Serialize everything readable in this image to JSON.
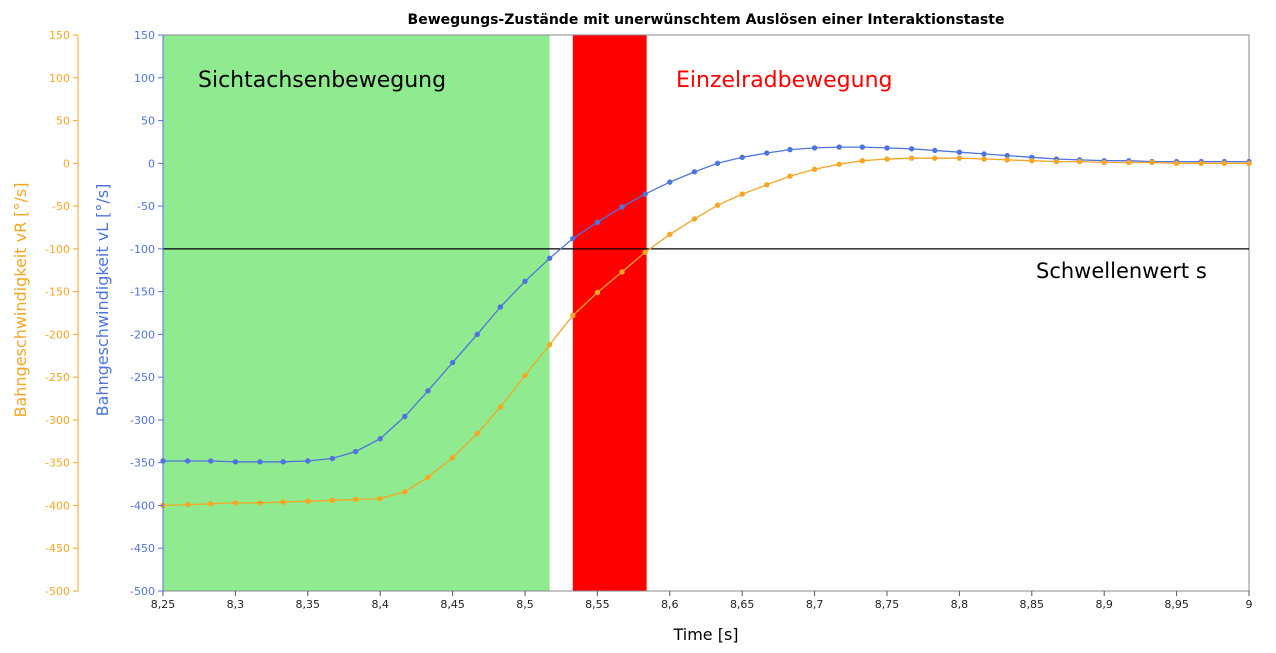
{
  "chart_data": {
    "type": "line",
    "title": "Bewegungs-Zustände mit unerwünschtem Auslösen einer Interaktionstaste",
    "xlabel": "Time [s]",
    "ylabel_left": "Bahngeschwindigkeit vL [°/s]",
    "ylabel_right": "Bahngeschwindigkeit vR [°/s]",
    "xlim": [
      8.25,
      9.0
    ],
    "ylim": [
      -500,
      150
    ],
    "x_ticks": [
      "8,25",
      "8,3",
      "8,35",
      "8,4",
      "8,45",
      "8,5",
      "8,55",
      "8,6",
      "8,65",
      "8,7",
      "8,75",
      "8,8",
      "8,85",
      "8,9",
      "8,95",
      "9"
    ],
    "y_ticks": [
      "150",
      "100",
      "50",
      "0",
      "-50",
      "-100",
      "-150",
      "-200",
      "-250",
      "-300",
      "-350",
      "-400",
      "-450",
      "-500"
    ],
    "colors": {
      "vL": "#4f74e0",
      "vR": "#f5a623",
      "zone_sicht": "#90ea8f",
      "zone_einzel": "#ff0000",
      "threshold": "#000000",
      "axis_vL": "#4f74e0",
      "axis_vR": "#f5a623"
    },
    "zones": [
      {
        "label": "Sichtachsenbewegung",
        "x_start": 8.25,
        "x_end": 8.517,
        "label_color": "#000000"
      },
      {
        "label": "Einzelradbewegung",
        "x_start": 8.533,
        "x_end": 8.584,
        "label_color": "#ff0000"
      }
    ],
    "threshold": {
      "label": "Schwellenwert s",
      "y": -100
    },
    "series": [
      {
        "name": "vL",
        "x": [
          8.25,
          8.267,
          8.283,
          8.3,
          8.317,
          8.333,
          8.35,
          8.367,
          8.383,
          8.4,
          8.417,
          8.433,
          8.45,
          8.467,
          8.483,
          8.5,
          8.517,
          8.533,
          8.55,
          8.567,
          8.583,
          8.6,
          8.617,
          8.633,
          8.65,
          8.667,
          8.683,
          8.7,
          8.717,
          8.733,
          8.75,
          8.767,
          8.783,
          8.8,
          8.817,
          8.833,
          8.85,
          8.867,
          8.883,
          8.9,
          8.917,
          8.933,
          8.95,
          8.967,
          8.983,
          9.0
        ],
        "values": [
          -348,
          -348,
          -348,
          -349,
          -349,
          -349,
          -348,
          -345,
          -337,
          -322,
          -296,
          -266,
          -233,
          -200,
          -168,
          -138,
          -111,
          -88,
          -69,
          -51,
          -36,
          -22,
          -10,
          0,
          7,
          12,
          16,
          18,
          19,
          19,
          18,
          17,
          15,
          13,
          11,
          9,
          7,
          5,
          4,
          3,
          3,
          2,
          2,
          2,
          2,
          2
        ]
      },
      {
        "name": "vR",
        "x": [
          8.25,
          8.267,
          8.283,
          8.3,
          8.317,
          8.333,
          8.35,
          8.367,
          8.383,
          8.4,
          8.417,
          8.433,
          8.45,
          8.467,
          8.483,
          8.5,
          8.517,
          8.533,
          8.55,
          8.567,
          8.583,
          8.6,
          8.617,
          8.633,
          8.65,
          8.667,
          8.683,
          8.7,
          8.717,
          8.733,
          8.75,
          8.767,
          8.783,
          8.8,
          8.817,
          8.833,
          8.85,
          8.867,
          8.883,
          8.9,
          8.917,
          8.933,
          8.95,
          8.967,
          8.983,
          9.0
        ],
        "values": [
          -400,
          -399,
          -398,
          -397,
          -397,
          -396,
          -395,
          -394,
          -393,
          -392,
          -384,
          -367,
          -344,
          -316,
          -285,
          -248,
          -212,
          -178,
          -151,
          -127,
          -104,
          -83,
          -65,
          -49,
          -36,
          -25,
          -15,
          -7,
          -1,
          3,
          5,
          6,
          6,
          6,
          5,
          4,
          3,
          2,
          2,
          1,
          1,
          1,
          0,
          0,
          0,
          0
        ]
      }
    ]
  }
}
